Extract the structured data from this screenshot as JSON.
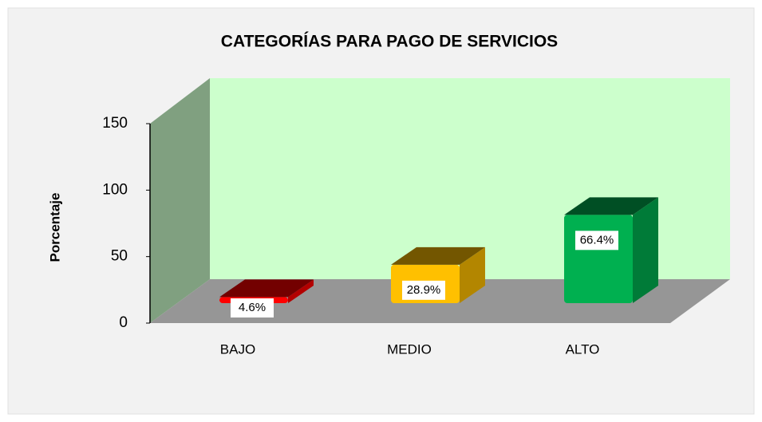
{
  "chart_data": {
    "type": "bar",
    "title": "CATEGORÍAS PARA PAGO DE SERVICIOS",
    "ylabel": "Porcentaje",
    "categories": [
      "BAJO",
      "MEDIO",
      "ALTO"
    ],
    "values": [
      4.6,
      28.9,
      66.4
    ],
    "value_labels": [
      "4.6%",
      "28.9%",
      "66.4%"
    ],
    "colors": [
      "#ff0000",
      "#ffc000",
      "#00b050"
    ],
    "ylim": [
      0,
      150
    ],
    "yticks": [
      0,
      50,
      100,
      150
    ]
  }
}
